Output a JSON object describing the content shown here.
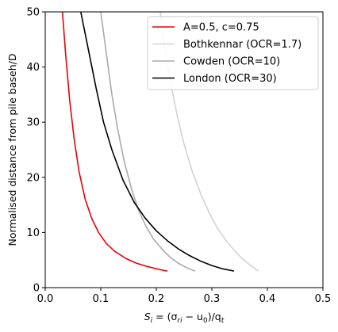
{
  "chart_data": {
    "type": "line",
    "xlabel_parts": {
      "prefix": "S",
      "sub": "i",
      "mid": " = (σ",
      "sub2": "ri",
      "rest": " − u",
      "sub3": "0",
      "tail": ")/q",
      "sub4": "t"
    },
    "ylabel": "Normalised distance from pile baseh/D",
    "xlim": [
      0.0,
      0.5
    ],
    "ylim": [
      0,
      50
    ],
    "xticks": [
      0.0,
      0.1,
      0.2,
      0.3,
      0.4,
      0.5
    ],
    "xtick_labels": [
      "0.0",
      "0.1",
      "0.2",
      "0.3",
      "0.4",
      "0.5"
    ],
    "yticks": [
      0,
      10,
      20,
      30,
      40,
      50
    ],
    "ytick_labels": [
      "0",
      "10",
      "20",
      "30",
      "40",
      "50"
    ],
    "grid": false,
    "legend_position": "top-right",
    "series": [
      {
        "name": "A=0.5, c=0.75",
        "color": "#e8000b",
        "points": [
          [
            0.22,
            3.0
          ],
          [
            0.205,
            3.3
          ],
          [
            0.185,
            3.8
          ],
          [
            0.165,
            4.4
          ],
          [
            0.145,
            5.3
          ],
          [
            0.125,
            6.6
          ],
          [
            0.11,
            8.0
          ],
          [
            0.096,
            10.0
          ],
          [
            0.084,
            12.5
          ],
          [
            0.072,
            16.0
          ],
          [
            0.061,
            21.0
          ],
          [
            0.052,
            27.0
          ],
          [
            0.044,
            34.0
          ],
          [
            0.037,
            42.0
          ],
          [
            0.031,
            50.0
          ]
        ]
      },
      {
        "name": "Bothkennar (OCR=1.7)",
        "color": "#d3d3d3",
        "points": [
          [
            0.384,
            3.0
          ],
          [
            0.37,
            4.0
          ],
          [
            0.355,
            5.2
          ],
          [
            0.34,
            6.8
          ],
          [
            0.325,
            8.6
          ],
          [
            0.31,
            10.8
          ],
          [
            0.295,
            13.6
          ],
          [
            0.28,
            17.0
          ],
          [
            0.265,
            21.0
          ],
          [
            0.25,
            26.0
          ],
          [
            0.238,
            31.0
          ],
          [
            0.226,
            37.0
          ],
          [
            0.216,
            43.0
          ],
          [
            0.207,
            50.0
          ]
        ]
      },
      {
        "name": "Cowden (OCR=10)",
        "color": "#aaaaaa",
        "points": [
          [
            0.27,
            3.0
          ],
          [
            0.255,
            3.6
          ],
          [
            0.24,
            4.4
          ],
          [
            0.225,
            5.5
          ],
          [
            0.21,
            7.0
          ],
          [
            0.195,
            8.8
          ],
          [
            0.182,
            11.0
          ],
          [
            0.168,
            14.0
          ],
          [
            0.155,
            18.0
          ],
          [
            0.142,
            23.0
          ],
          [
            0.13,
            29.0
          ],
          [
            0.12,
            35.0
          ],
          [
            0.112,
            41.0
          ],
          [
            0.104,
            47.0
          ],
          [
            0.1,
            50.0
          ]
        ]
      },
      {
        "name": "London (OCR=30)",
        "color": "#000000",
        "points": [
          [
            0.34,
            3.0
          ],
          [
            0.32,
            3.4
          ],
          [
            0.3,
            4.0
          ],
          [
            0.28,
            4.8
          ],
          [
            0.26,
            5.8
          ],
          [
            0.24,
            7.0
          ],
          [
            0.22,
            8.5
          ],
          [
            0.2,
            10.3
          ],
          [
            0.18,
            12.6
          ],
          [
            0.16,
            15.5
          ],
          [
            0.14,
            19.5
          ],
          [
            0.12,
            25.0
          ],
          [
            0.105,
            30.0
          ],
          [
            0.092,
            36.0
          ],
          [
            0.08,
            42.0
          ],
          [
            0.07,
            47.0
          ],
          [
            0.064,
            50.0
          ]
        ]
      }
    ]
  }
}
